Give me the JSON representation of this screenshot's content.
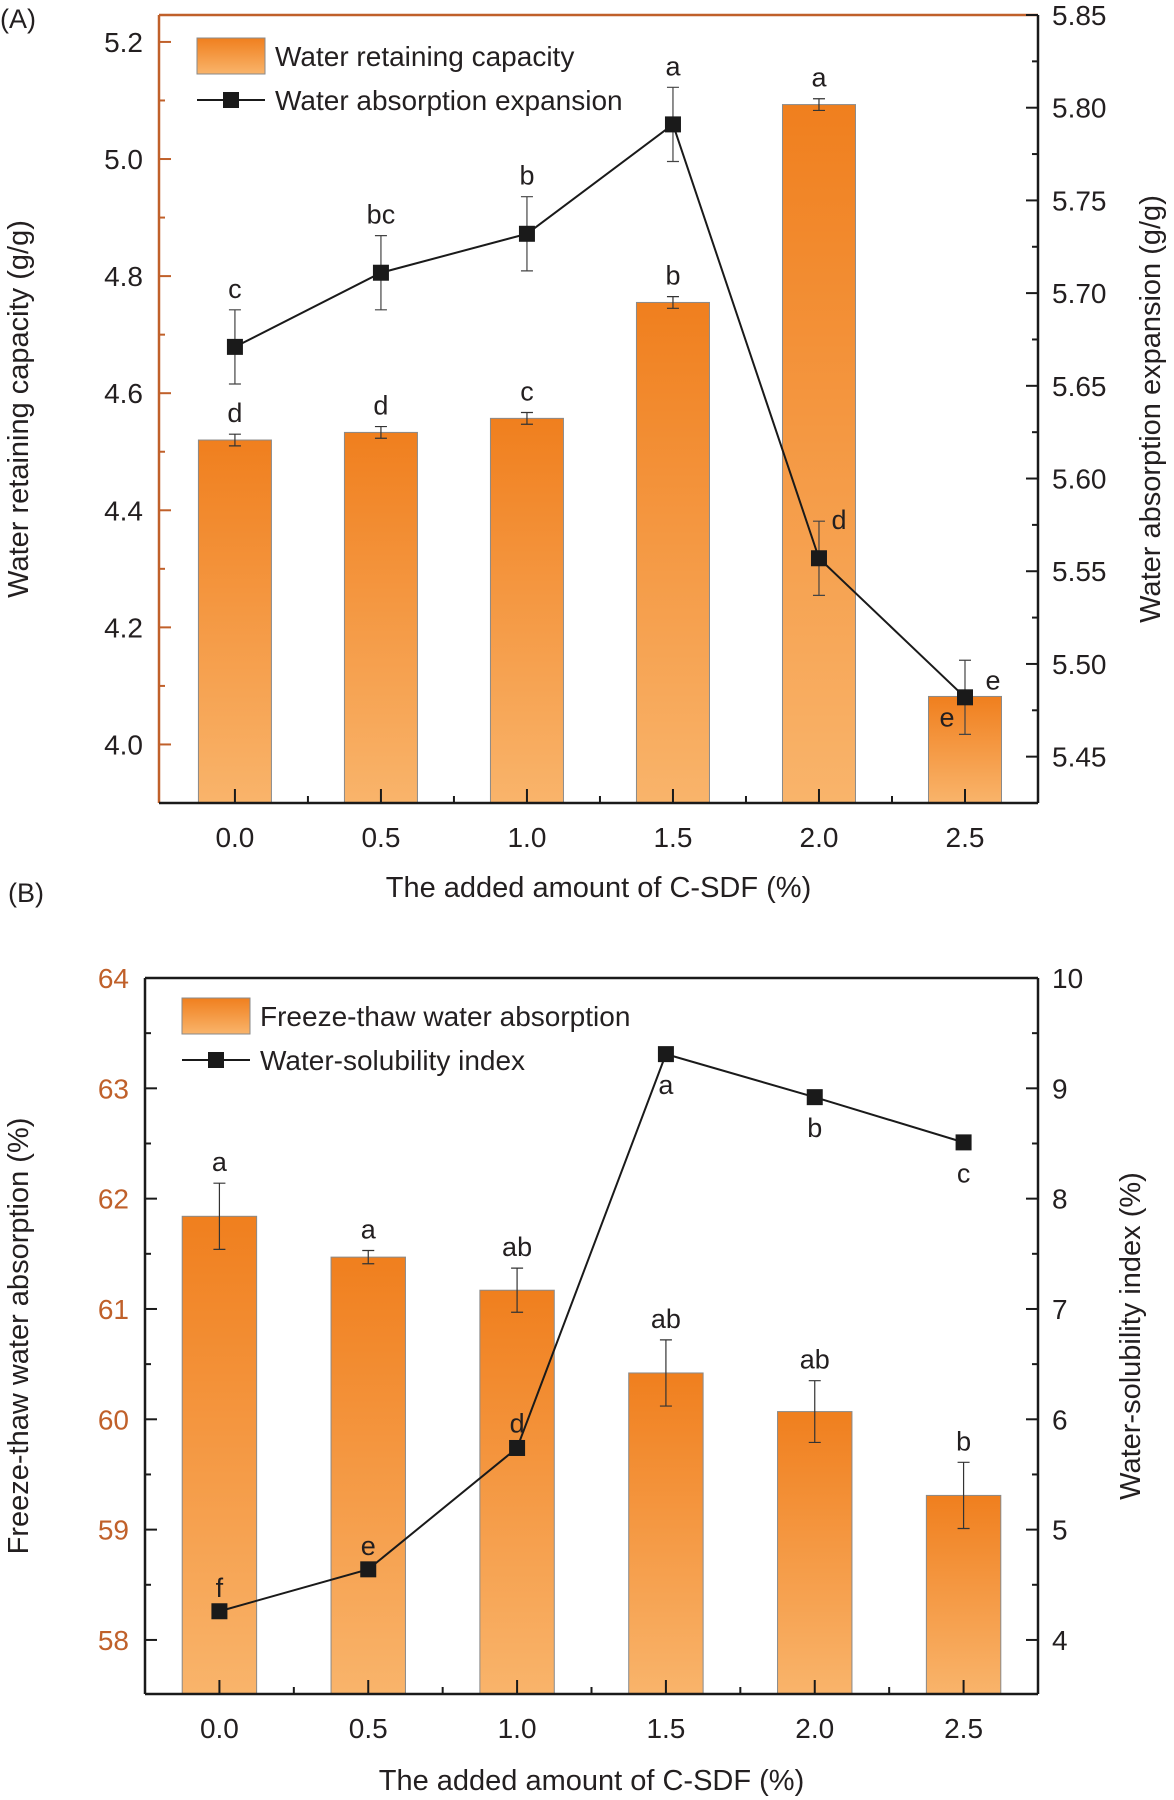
{
  "colors": {
    "bar_top": "#f07f1e",
    "bar_bottom": "#f9b46b",
    "bar_edge": "#8a8a8a",
    "line": "#1a1a1a",
    "axis_orange": "#c0602a",
    "axis": "#1a1a1a"
  },
  "chart_data": [
    {
      "type": "bar",
      "panel_label": "(A)",
      "xlabel": "The added amount of C-SDF (%)",
      "ylabel": "Water retaining capacity (g/g)",
      "y2label": "Water absorption expansion (g/g)",
      "x_ticks": [
        "0.0",
        "0.5",
        "1.0",
        "1.5",
        "2.0",
        "2.5"
      ],
      "x": [
        0.0,
        0.5,
        1.0,
        1.5,
        2.0,
        2.5
      ],
      "xlim": [
        -0.26,
        2.75
      ],
      "ylim": [
        3.9,
        5.246
      ],
      "y_ticks": [
        "4.0",
        "4.2",
        "4.4",
        "4.6",
        "4.8",
        "5.0",
        "5.2"
      ],
      "y2lim": [
        5.425,
        5.85
      ],
      "y2_ticks": [
        "5.45",
        "5.50",
        "5.55",
        "5.60",
        "5.65",
        "5.70",
        "5.75",
        "5.80",
        "5.85"
      ],
      "left_axis_orange": true,
      "legend_position": "top-left",
      "bar_series": {
        "name": "Water retaining capacity",
        "values": [
          4.52,
          4.533,
          4.557,
          4.755,
          5.093,
          4.082
        ],
        "errors": [
          0.01,
          0.01,
          0.01,
          0.01,
          0.01,
          0.01
        ],
        "letters": [
          "d",
          "d",
          "c",
          "b",
          "a",
          "e"
        ],
        "letter_pos": [
          "above",
          "above",
          "above",
          "above",
          "above",
          "inside-left"
        ]
      },
      "line_series": {
        "name": "Water absorption expansion",
        "values": [
          5.671,
          5.711,
          5.732,
          5.791,
          5.557,
          5.482
        ],
        "errors": [
          0.02,
          0.02,
          0.02,
          0.02,
          0.02,
          0.02
        ],
        "letters": [
          "c",
          "bc",
          "b",
          "a",
          "d",
          "e"
        ],
        "letter_pos": [
          "above",
          "above",
          "above",
          "above",
          "above-right",
          "right"
        ]
      }
    },
    {
      "type": "bar",
      "panel_label": "(B)",
      "xlabel": "The added amount of C-SDF (%)",
      "ylabel": "Freeze-thaw water absorption (%)",
      "y2label": "Water-solubility index (%)",
      "x_ticks": [
        "0.0",
        "0.5",
        "1.0",
        "1.5",
        "2.0",
        "2.5"
      ],
      "x": [
        0.0,
        0.5,
        1.0,
        1.5,
        2.0,
        2.5
      ],
      "xlim": [
        -0.25,
        2.75
      ],
      "ylim": [
        57.51,
        64
      ],
      "y_ticks": [
        "58",
        "59",
        "60",
        "61",
        "62",
        "63",
        "64"
      ],
      "y2lim": [
        3.51,
        10
      ],
      "y2_ticks": [
        "4",
        "5",
        "6",
        "7",
        "8",
        "9",
        "10"
      ],
      "left_axis_orange": false,
      "legend_position": "top-left",
      "bar_series": {
        "name": "Freeze-thaw water absorption",
        "values": [
          61.84,
          61.47,
          61.17,
          60.42,
          60.07,
          59.31
        ],
        "errors": [
          0.3,
          0.06,
          0.2,
          0.3,
          0.28,
          0.3
        ],
        "letters": [
          "a",
          "a",
          "ab",
          "ab",
          "ab",
          "b"
        ],
        "letter_pos": [
          "above",
          "above",
          "above",
          "above",
          "above",
          "above"
        ]
      },
      "line_series": {
        "name": "Water-solubility index",
        "values": [
          4.26,
          4.64,
          5.74,
          9.31,
          8.92,
          8.51
        ],
        "errors": [
          0.02,
          0.02,
          0.03,
          0.06,
          0.02,
          0.02
        ],
        "letters": [
          "f",
          "e",
          "d",
          "a",
          "b",
          "c"
        ],
        "letter_pos": [
          "above",
          "above",
          "above",
          "below",
          "below",
          "below"
        ]
      }
    }
  ]
}
